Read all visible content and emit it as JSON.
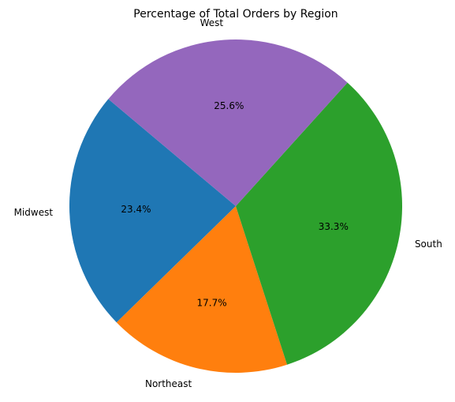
{
  "chart_data": {
    "type": "pie",
    "title": "Percentage of Total Orders by Region",
    "categories": [
      "Midwest",
      "Northeast",
      "South",
      "West"
    ],
    "values": [
      23.4,
      17.7,
      33.3,
      25.6
    ],
    "value_labels": [
      "23.4%",
      "17.7%",
      "33.3%",
      "25.6%"
    ],
    "colors": [
      "#1f77b4",
      "#ff7f0e",
      "#2ca02c",
      "#9467bd"
    ],
    "start_angle_deg": 140,
    "direction": "counterclockwise",
    "legend": "none"
  }
}
